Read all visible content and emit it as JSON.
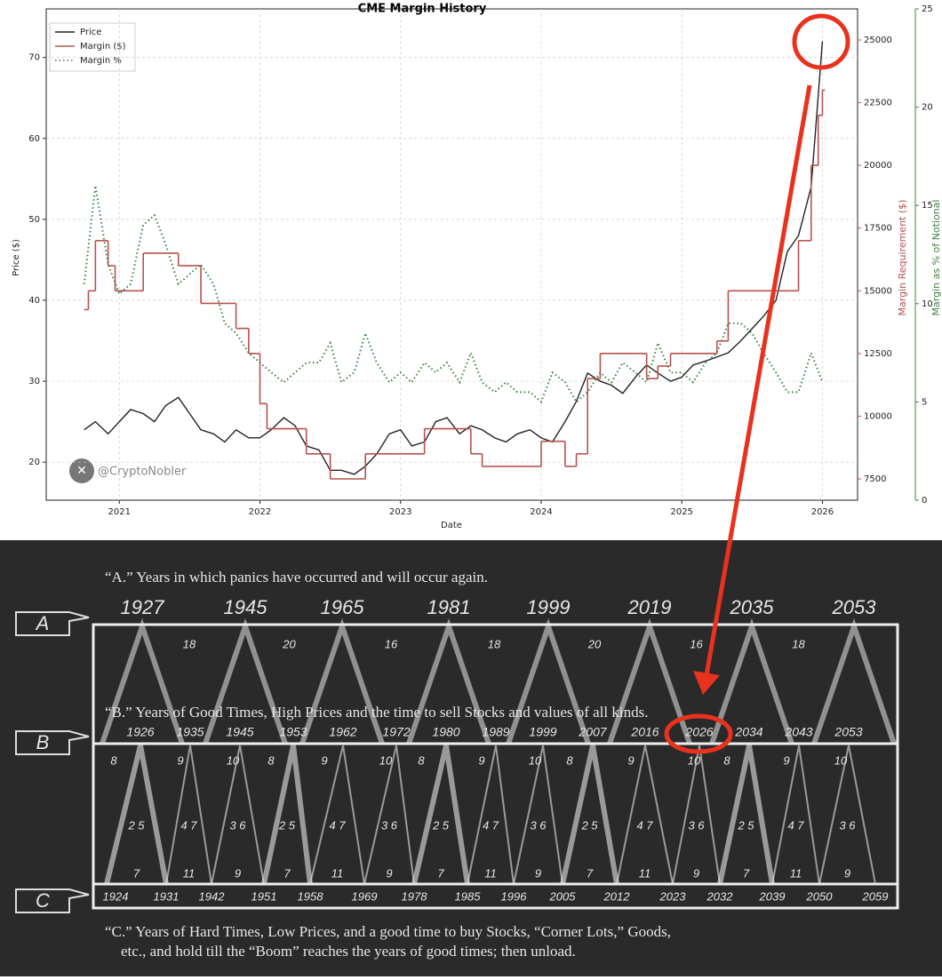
{
  "chart_data": {
    "type": "line",
    "title": "CME Margin History",
    "x_label": "Date",
    "y_label": "Price ($)",
    "y2_label": "Margin Requirement ($)",
    "y3_label": "Margin as % of Notional",
    "watermark": "@CryptoNobler",
    "x": [
      2020.75,
      2020.83,
      2020.92,
      2021.0,
      2021.08,
      2021.17,
      2021.25,
      2021.33,
      2021.42,
      2021.5,
      2021.58,
      2021.67,
      2021.75,
      2021.83,
      2021.92,
      2022.0,
      2022.08,
      2022.17,
      2022.25,
      2022.33,
      2022.42,
      2022.5,
      2022.58,
      2022.67,
      2022.75,
      2022.83,
      2022.92,
      2023.0,
      2023.08,
      2023.17,
      2023.25,
      2023.33,
      2023.42,
      2023.5,
      2023.58,
      2023.67,
      2023.75,
      2023.83,
      2023.92,
      2024.0,
      2024.08,
      2024.17,
      2024.25,
      2024.33,
      2024.42,
      2024.5,
      2024.58,
      2024.67,
      2024.75,
      2024.83,
      2024.92,
      2025.0,
      2025.08,
      2025.17,
      2025.25,
      2025.33,
      2025.42,
      2025.5,
      2025.58,
      2025.67,
      2025.75,
      2025.83,
      2025.92,
      2026.0
    ],
    "xlim": [
      2020.48,
      2026.25
    ],
    "xticks": [
      2021,
      2022,
      2023,
      2024,
      2025,
      2026
    ],
    "ylim": [
      15.3,
      76
    ],
    "yticks": [
      20,
      30,
      40,
      50,
      60,
      70
    ],
    "y2lim": [
      6650,
      26240
    ],
    "y2ticks": [
      7500,
      10000,
      12500,
      15000,
      17500,
      20000,
      22500,
      25000
    ],
    "y3lim": [
      0,
      25
    ],
    "y3ticks": [
      0,
      5,
      10,
      15,
      20,
      25
    ],
    "grid": true,
    "legend": "upper left",
    "series": [
      {
        "name": "Price",
        "color": "#222222",
        "axis": "y",
        "style": "solid",
        "values": [
          24,
          25,
          23.5,
          25,
          26.5,
          26,
          25,
          27,
          28,
          26,
          24,
          23.5,
          22.5,
          24,
          23,
          23,
          24,
          25.5,
          24.5,
          22,
          21.5,
          19,
          19,
          18.5,
          19.5,
          21,
          23.5,
          24,
          22,
          22.5,
          25,
          25.5,
          23.5,
          24.5,
          24,
          23,
          22.5,
          23.5,
          24,
          23,
          22.5,
          25,
          27.5,
          31,
          30,
          29.5,
          28.5,
          30.5,
          32,
          31,
          30,
          30.5,
          32,
          32.5,
          33,
          33.5,
          35,
          36.5,
          38,
          40,
          46,
          48,
          54,
          72
        ]
      },
      {
        "name": "Margin ($)",
        "color": "#b5524f",
        "axis": "y2",
        "style": "step",
        "x": [
          2020.75,
          2020.78,
          2020.83,
          2020.92,
          2020.97,
          2021.17,
          2021.42,
          2021.58,
          2021.83,
          2021.92,
          2022.0,
          2022.05,
          2022.33,
          2022.5,
          2022.75,
          2023.17,
          2023.5,
          2023.58,
          2023.75,
          2024.0,
          2024.17,
          2024.25,
          2024.33,
          2024.42,
          2024.75,
          2024.83,
          2024.92,
          2025.25,
          2025.33,
          2025.83,
          2025.92,
          2025.97,
          2026.0
        ],
        "values": [
          14250,
          15000,
          17000,
          16000,
          15000,
          16500,
          16000,
          14500,
          13500,
          12500,
          10500,
          9500,
          8500,
          7500,
          8500,
          9500,
          8500,
          8000,
          8000,
          9000,
          8000,
          8500,
          11500,
          12500,
          11500,
          12000,
          12500,
          13000,
          15000,
          17000,
          20000,
          22000,
          23000
        ]
      },
      {
        "name": "Margin %",
        "color": "#3f7f3f",
        "axis": "y3",
        "style": "dotted",
        "values": [
          11,
          16,
          12,
          10.5,
          11,
          14,
          14.5,
          13,
          11,
          11.5,
          12,
          11,
          9,
          8.5,
          7.5,
          7,
          6.5,
          6,
          6.5,
          7,
          7,
          8,
          6,
          6.5,
          8.5,
          7,
          6,
          6.5,
          6,
          7,
          6.5,
          7,
          6,
          7.5,
          6,
          5.5,
          6,
          5.5,
          5.5,
          5,
          6.5,
          6,
          5,
          5.5,
          6.5,
          6,
          7,
          6.5,
          6,
          8,
          6.5,
          6.5,
          6,
          7,
          7.5,
          9,
          9,
          8.5,
          7.5,
          6.5,
          5.5,
          5.5,
          7.5,
          6
        ]
      }
    ]
  },
  "benner": {
    "markers": [
      "A",
      "B",
      "C"
    ],
    "a_caption": "“A.” Years in which panics have occurred and will occur again.",
    "a_years": [
      "1927",
      "1945",
      "1965",
      "1981",
      "1999",
      "2019",
      "2035",
      "2053"
    ],
    "a_intervals": [
      "18",
      "20",
      "16",
      "18",
      "20",
      "16",
      "18"
    ],
    "b_caption": "“B.” Years of Good Times, High Prices and the time to sell Stocks and values of all kinds.",
    "b_years": [
      "1926",
      "1935",
      "1945",
      "1953",
      "1962",
      "1972",
      "1980",
      "1989",
      "1999",
      "2007",
      "2016",
      "2026",
      "2034",
      "2043",
      "2053"
    ],
    "b_intervals": [
      "8",
      "9",
      "10",
      "8",
      "9",
      "10",
      "8",
      "9",
      "10",
      "8",
      "9",
      "10",
      "8",
      "9",
      "10"
    ],
    "mid_pairs": [
      "2 5",
      "4 7",
      "3 6",
      "2 5",
      "4 7",
      "3 6",
      "2 5",
      "4 7",
      "3 6",
      "2 5",
      "4 7",
      "3 6",
      "2 5",
      "4 7",
      "3 6"
    ],
    "c_intervals": [
      "7",
      "11",
      "9",
      "7",
      "11",
      "9",
      "7",
      "11",
      "9",
      "7",
      "11",
      "9",
      "7",
      "11",
      "9"
    ],
    "c_years": [
      "1924",
      "1931",
      "1942",
      "1951",
      "1958",
      "1969",
      "1978",
      "1985",
      "1996",
      "2005",
      "2012",
      "2023",
      "2032",
      "2039",
      "2050",
      "2059"
    ],
    "c_caption": [
      "“C.” Years of Hard Times, Low Prices, and a good time to buy Stocks, “Corner Lots,” Goods,",
      "etc., and hold till the “Boom” reaches the years of good times; then unload."
    ]
  }
}
